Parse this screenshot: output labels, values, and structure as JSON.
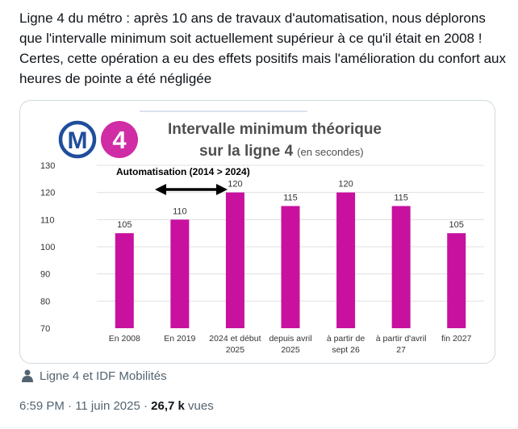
{
  "tweet": {
    "text": "Ligne 4 du métro : après 10 ans de travaux d'automatisation, nous déplorons que l'intervalle minimum soit actuellement supérieur à ce qu'il était en 2008 ! Certes, cette opération a eu des effets positifs mais l'amélioration du confort aux heures de pointe a été négligée",
    "media_caption": "Ligne 4 et IDF Mobilités",
    "timestamp": "6:59 PM · 11 juin 2025 · ",
    "views_count": "26,7 k",
    "views_label": "vues"
  },
  "logos": {
    "metro_letter": "M",
    "line_number": "4",
    "metro_color": "#1f4e9c",
    "line_color": "#cf2ca6"
  },
  "chart_data": {
    "type": "bar",
    "title_line1": "Intervalle minimum théorique",
    "title_line2": "sur la ligne 4",
    "title_unit": "(en secondes)",
    "annotation": "Automatisation (2014 > 2024)",
    "categories": [
      "En 2008",
      "En 2019",
      "2024 et début 2025",
      "depuis avril 2025",
      "à partir de sept 26",
      "à partir d'avril 27",
      "fin 2027"
    ],
    "category_lines": [
      [
        "En 2008"
      ],
      [
        "En 2019"
      ],
      [
        "2024 et début",
        "2025"
      ],
      [
        "depuis avril",
        "2025"
      ],
      [
        "à partir de",
        "sept 26"
      ],
      [
        "à partir d'avril",
        "27"
      ],
      [
        "fin 2027"
      ]
    ],
    "values": [
      105,
      110,
      120,
      115,
      120,
      115,
      105
    ],
    "yticks": [
      70,
      80,
      90,
      100,
      110,
      120,
      130
    ],
    "ylim": [
      70,
      130
    ],
    "bar_color": "#c8119f",
    "grid": true
  }
}
